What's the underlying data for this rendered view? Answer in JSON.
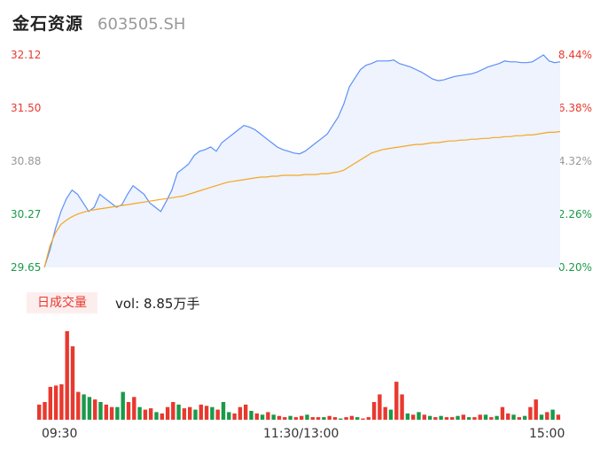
{
  "header": {
    "name": "金石资源",
    "code": "603505.SH"
  },
  "price_axis": [
    "32.12",
    "31.50",
    "30.88",
    "30.27",
    "29.65"
  ],
  "pct_axis": [
    "8.44%",
    "6.38%",
    "4.32%",
    "2.26%",
    "0.20%"
  ],
  "colors": {
    "up": "#e8392f",
    "flat": "#999999",
    "down": "#1a9a4a",
    "price_line": "#5b8ff9",
    "avg_line": "#f5a623",
    "area": "#eef3fd"
  },
  "volume_tab": "日成交量",
  "volume_text": "vol: 8.85万手",
  "time_axis": [
    "09:30",
    "11:30/13:00",
    "15:00"
  ],
  "chart_data": {
    "type": "line",
    "title": "",
    "xlabel": "",
    "ylabel": "",
    "ylim": [
      29.65,
      32.12
    ],
    "series": [
      {
        "values": [
          29.65,
          29.85,
          30.1,
          30.3,
          30.45,
          30.55,
          30.5,
          30.4,
          30.3,
          30.35,
          30.5,
          30.45,
          30.4,
          30.35,
          30.38,
          30.5,
          30.6,
          30.55,
          30.5,
          30.4,
          30.35,
          30.3,
          30.42,
          30.55,
          30.75,
          30.8,
          30.85,
          30.95,
          31.0,
          31.02,
          31.05,
          31.0,
          31.1,
          31.15,
          31.2,
          31.25,
          31.3,
          31.28,
          31.25,
          31.2,
          31.15,
          31.1,
          31.05,
          31.02,
          31.0,
          30.98,
          30.97,
          31.0,
          31.05,
          31.1,
          31.15,
          31.2,
          31.3,
          31.4,
          31.55,
          31.75,
          31.85,
          31.95,
          32.0,
          32.02,
          32.05,
          32.05,
          32.05,
          32.06,
          32.02,
          32.0,
          31.98,
          31.95,
          31.92,
          31.88,
          31.84,
          31.82,
          31.83,
          31.85,
          31.87,
          31.88,
          31.89,
          31.9,
          31.92,
          31.95,
          31.98,
          32.0,
          32.02,
          32.05,
          32.04,
          32.04,
          32.03,
          32.03,
          32.04,
          32.08,
          32.12,
          32.05,
          32.03,
          32.04
        ]
      },
      {
        "values": [
          29.65,
          29.9,
          30.05,
          30.15,
          30.2,
          30.24,
          30.27,
          30.29,
          30.31,
          30.32,
          30.33,
          30.34,
          30.35,
          30.36,
          30.37,
          30.38,
          30.39,
          30.4,
          30.41,
          30.42,
          30.43,
          30.44,
          30.45,
          30.46,
          30.47,
          30.48,
          30.5,
          30.52,
          30.54,
          30.56,
          30.58,
          30.6,
          30.62,
          30.64,
          30.65,
          30.66,
          30.67,
          30.68,
          30.69,
          30.7,
          30.7,
          30.71,
          30.71,
          30.72,
          30.72,
          30.72,
          30.72,
          30.73,
          30.73,
          30.73,
          30.74,
          30.74,
          30.75,
          30.76,
          30.78,
          30.82,
          30.86,
          30.9,
          30.94,
          30.98,
          31.0,
          31.02,
          31.03,
          31.04,
          31.05,
          31.06,
          31.07,
          31.08,
          31.08,
          31.09,
          31.1,
          31.1,
          31.11,
          31.12,
          31.12,
          31.13,
          31.13,
          31.14,
          31.14,
          31.15,
          31.15,
          31.16,
          31.16,
          31.17,
          31.17,
          31.18,
          31.18,
          31.19,
          31.19,
          31.2,
          31.21,
          31.22,
          31.22,
          31.23
        ]
      }
    ],
    "volume": [
      12,
      14,
      26,
      27,
      28,
      70,
      58,
      22,
      20,
      18,
      16,
      14,
      12,
      10,
      10,
      22,
      14,
      18,
      10,
      8,
      9,
      6,
      5,
      10,
      14,
      12,
      9,
      10,
      8,
      12,
      11,
      10,
      8,
      14,
      6,
      5,
      10,
      12,
      7,
      5,
      4,
      6,
      4,
      3,
      2,
      3,
      2,
      3,
      4,
      2,
      2,
      2,
      3,
      2,
      1,
      2,
      3,
      2,
      1,
      2,
      14,
      20,
      10,
      8,
      30,
      20,
      5,
      4,
      6,
      4,
      3,
      2,
      3,
      2,
      2,
      3,
      4,
      2,
      2,
      4,
      4,
      2,
      3,
      10,
      5,
      4,
      2,
      3,
      10,
      16,
      4,
      6,
      8,
      4
    ],
    "volume_dir": [
      "up",
      "up",
      "up",
      "up",
      "up",
      "up",
      "up",
      "up",
      "down",
      "down",
      "up",
      "down",
      "up",
      "up",
      "down",
      "down",
      "up",
      "up",
      "down",
      "up",
      "up",
      "down",
      "up",
      "up",
      "up",
      "down",
      "up",
      "up",
      "down",
      "up",
      "up",
      "down",
      "up",
      "down",
      "down",
      "up",
      "up",
      "up",
      "down",
      "up",
      "down",
      "up",
      "down",
      "up",
      "up",
      "down",
      "up",
      "up",
      "down",
      "up",
      "up",
      "down",
      "up",
      "up",
      "down",
      "up",
      "up",
      "down",
      "up",
      "up",
      "up",
      "up",
      "up",
      "down",
      "up",
      "up",
      "down",
      "up",
      "down",
      "up",
      "down",
      "up",
      "down",
      "up",
      "up",
      "down",
      "up",
      "down",
      "up",
      "up",
      "down",
      "up",
      "down",
      "up",
      "up",
      "down",
      "up",
      "down",
      "up",
      "up",
      "down",
      "up",
      "down",
      "up"
    ]
  }
}
